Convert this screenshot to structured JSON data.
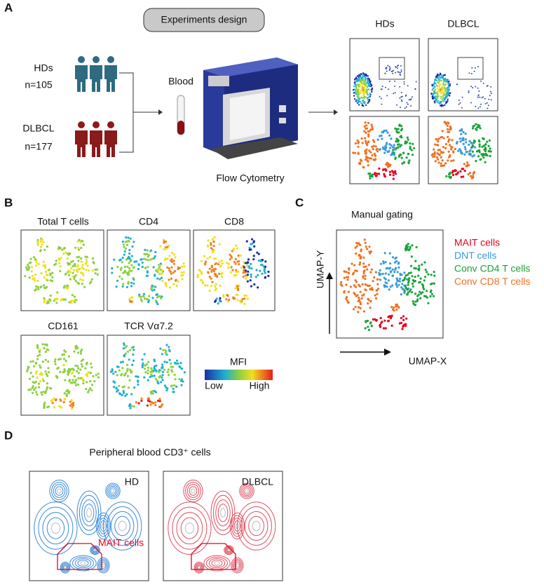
{
  "panel_a": {
    "label": "A",
    "design_title": "Experiments design",
    "groups": [
      {
        "name": "HDs",
        "count": "n=105"
      },
      {
        "name": "DLBCL",
        "count": "n=177"
      }
    ],
    "sample": "Blood",
    "instrument": "Flow Cytometry",
    "plot_columns": [
      "HDs",
      "DLBCL"
    ]
  },
  "panel_b": {
    "label": "B",
    "markers": [
      "Total T cells",
      "CD4",
      "CD8",
      "CD161",
      "TCR Vα7.2"
    ],
    "scale_title": "MFI",
    "scale_low": "Low",
    "scale_high": "High"
  },
  "panel_c": {
    "label": "C",
    "title": "Manual gating",
    "y_axis": "UMAP-Y",
    "x_axis": "UMAP-X",
    "legend": [
      {
        "name": "MAIT cells",
        "color": "#e8001c"
      },
      {
        "name": "DNT cells",
        "color": "#3a9ad9"
      },
      {
        "name": "Conv CD4 T cells",
        "color": "#1aa33a"
      },
      {
        "name": "Conv CD8 T cells",
        "color": "#f07020"
      }
    ]
  },
  "panel_d": {
    "label": "D",
    "title": "Peripheral blood CD3⁺ cells",
    "plots": [
      "HD",
      "DLBCL"
    ],
    "gate": "MAIT cells"
  }
}
